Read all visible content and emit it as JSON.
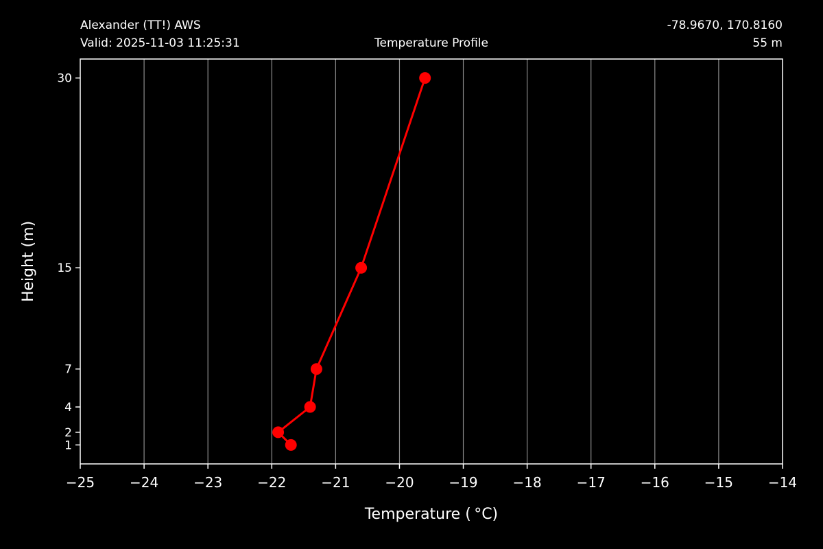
{
  "header": {
    "station": "Alexander (TT!) AWS",
    "valid": "Valid: 2025-11-03 11:25:31",
    "title": "Temperature Profile",
    "coords": "-78.9670, 170.8160",
    "elevation": "55 m"
  },
  "chart_data": {
    "type": "line",
    "title": "Temperature Profile",
    "xlabel": "Temperature ($^\\circ$C)",
    "xlabel_display": "Temperature ( °C)",
    "ylabel": "Height (m)",
    "xlim": [
      -25,
      -14
    ],
    "ylim": [
      -0.5,
      31.5
    ],
    "x_ticks": [
      -25,
      -24,
      -23,
      -22,
      -21,
      -20,
      -19,
      -18,
      -17,
      -16,
      -15,
      -14
    ],
    "x_tick_labels": [
      "−25",
      "−24",
      "−23",
      "−22",
      "−21",
      "−20",
      "−19",
      "−18",
      "−17",
      "−16",
      "−15",
      "−14"
    ],
    "y_ticks": [
      1,
      2,
      4,
      7,
      15,
      30
    ],
    "y_tick_labels": [
      "1",
      "2",
      "4",
      "7",
      "15",
      "30"
    ],
    "grid": "vertical",
    "background": "#000000",
    "series": [
      {
        "color": "#ff0000",
        "marker": "circle",
        "points": [
          {
            "x": -21.7,
            "y": 1
          },
          {
            "x": -21.9,
            "y": 2
          },
          {
            "x": -21.4,
            "y": 4
          },
          {
            "x": -21.3,
            "y": 7
          },
          {
            "x": -20.6,
            "y": 15
          },
          {
            "x": -19.6,
            "y": 30
          }
        ]
      }
    ]
  }
}
